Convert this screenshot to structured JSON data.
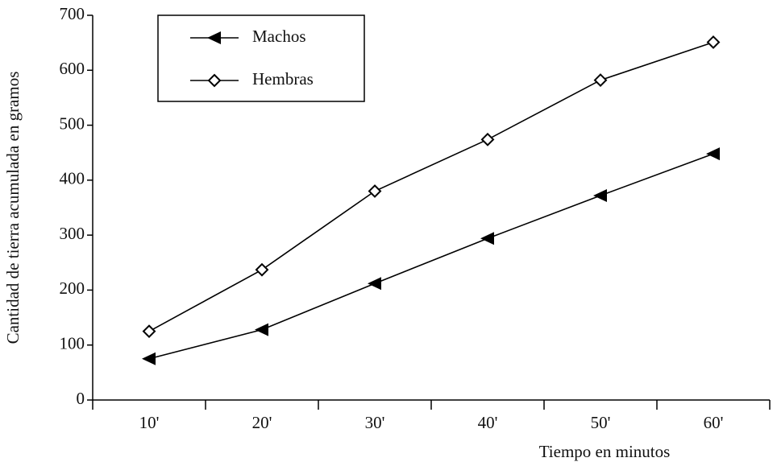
{
  "chart_data": {
    "type": "line",
    "x_label": "Tiempo en minutos",
    "y_label": "Cantidad de tierra acumulada en gramos",
    "categories": [
      "10'",
      "20'",
      "30'",
      "40'",
      "50'",
      "60'"
    ],
    "series": [
      {
        "name": "Machos",
        "color": "#000000",
        "marker": "triangle-left",
        "values": [
          75,
          128,
          212,
          294,
          372,
          448
        ]
      },
      {
        "name": "Hembras",
        "color": "#000000",
        "marker": "diamond-open",
        "values": [
          125,
          237,
          380,
          474,
          582,
          651
        ]
      }
    ],
    "ylim": [
      0,
      700
    ],
    "yticks": [
      0,
      100,
      200,
      300,
      400,
      500,
      600,
      700
    ],
    "legend": "top-left",
    "grid": false
  }
}
